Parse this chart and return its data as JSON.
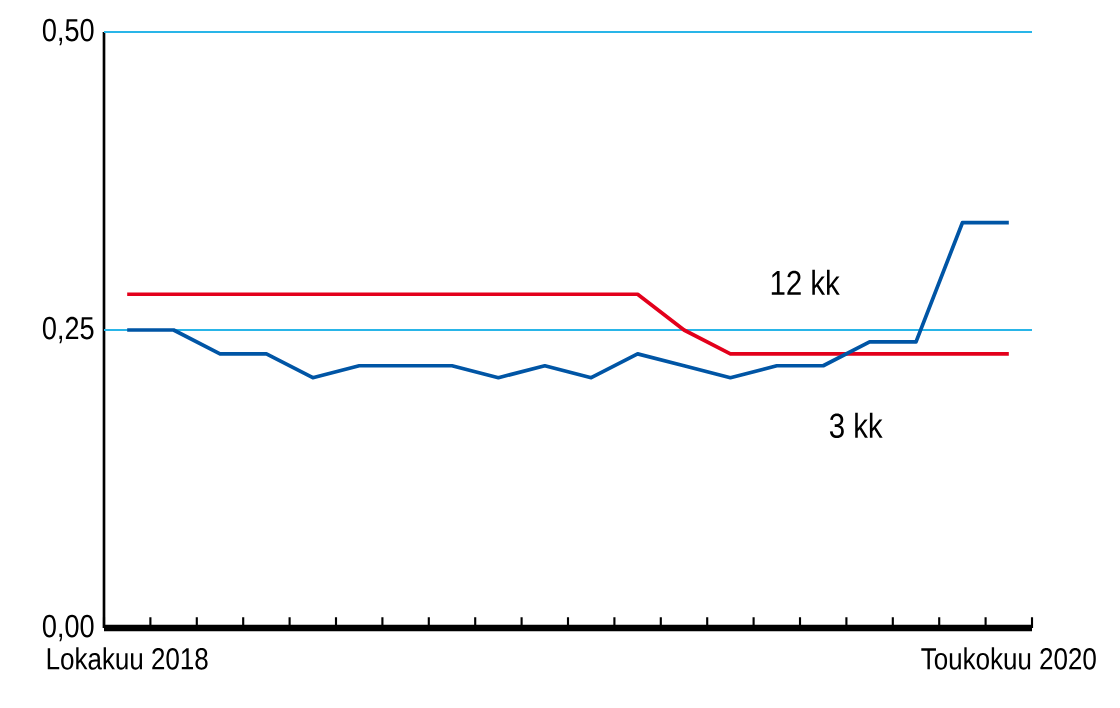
{
  "chart_data": {
    "type": "line",
    "categories": [
      "Lokakuu 2018",
      null,
      null,
      null,
      null,
      null,
      null,
      null,
      null,
      null,
      null,
      null,
      null,
      null,
      null,
      null,
      null,
      null,
      null,
      "Toukokuu 2020"
    ],
    "series": [
      {
        "name": "12 kk",
        "color": "#e3001b",
        "values": [
          0.28,
          0.28,
          0.28,
          0.28,
          0.28,
          0.28,
          0.28,
          0.28,
          0.28,
          0.28,
          0.28,
          0.28,
          0.25,
          0.23,
          0.23,
          0.23,
          0.23,
          0.23,
          0.23,
          0.23
        ]
      },
      {
        "name": "3 kk",
        "color": "#0055a5",
        "values": [
          0.25,
          0.25,
          0.23,
          0.23,
          0.21,
          0.22,
          0.22,
          0.22,
          0.21,
          0.22,
          0.21,
          0.23,
          0.22,
          0.21,
          0.22,
          0.22,
          0.24,
          0.24,
          0.34,
          0.34
        ]
      }
    ],
    "ylim": [
      0,
      0.5
    ],
    "yticks": [
      {
        "value": 0,
        "label": "0,00"
      },
      {
        "value": 0.25,
        "label": "0,25"
      },
      {
        "value": 0.5,
        "label": "0,50"
      }
    ],
    "ref_lines": [
      {
        "axis": "y",
        "value": 0.25,
        "color": "#29b5e8"
      },
      {
        "axis": "y",
        "value": 0.5,
        "color": "#29b5e8"
      }
    ],
    "marker": "none",
    "line_style": "solid"
  }
}
